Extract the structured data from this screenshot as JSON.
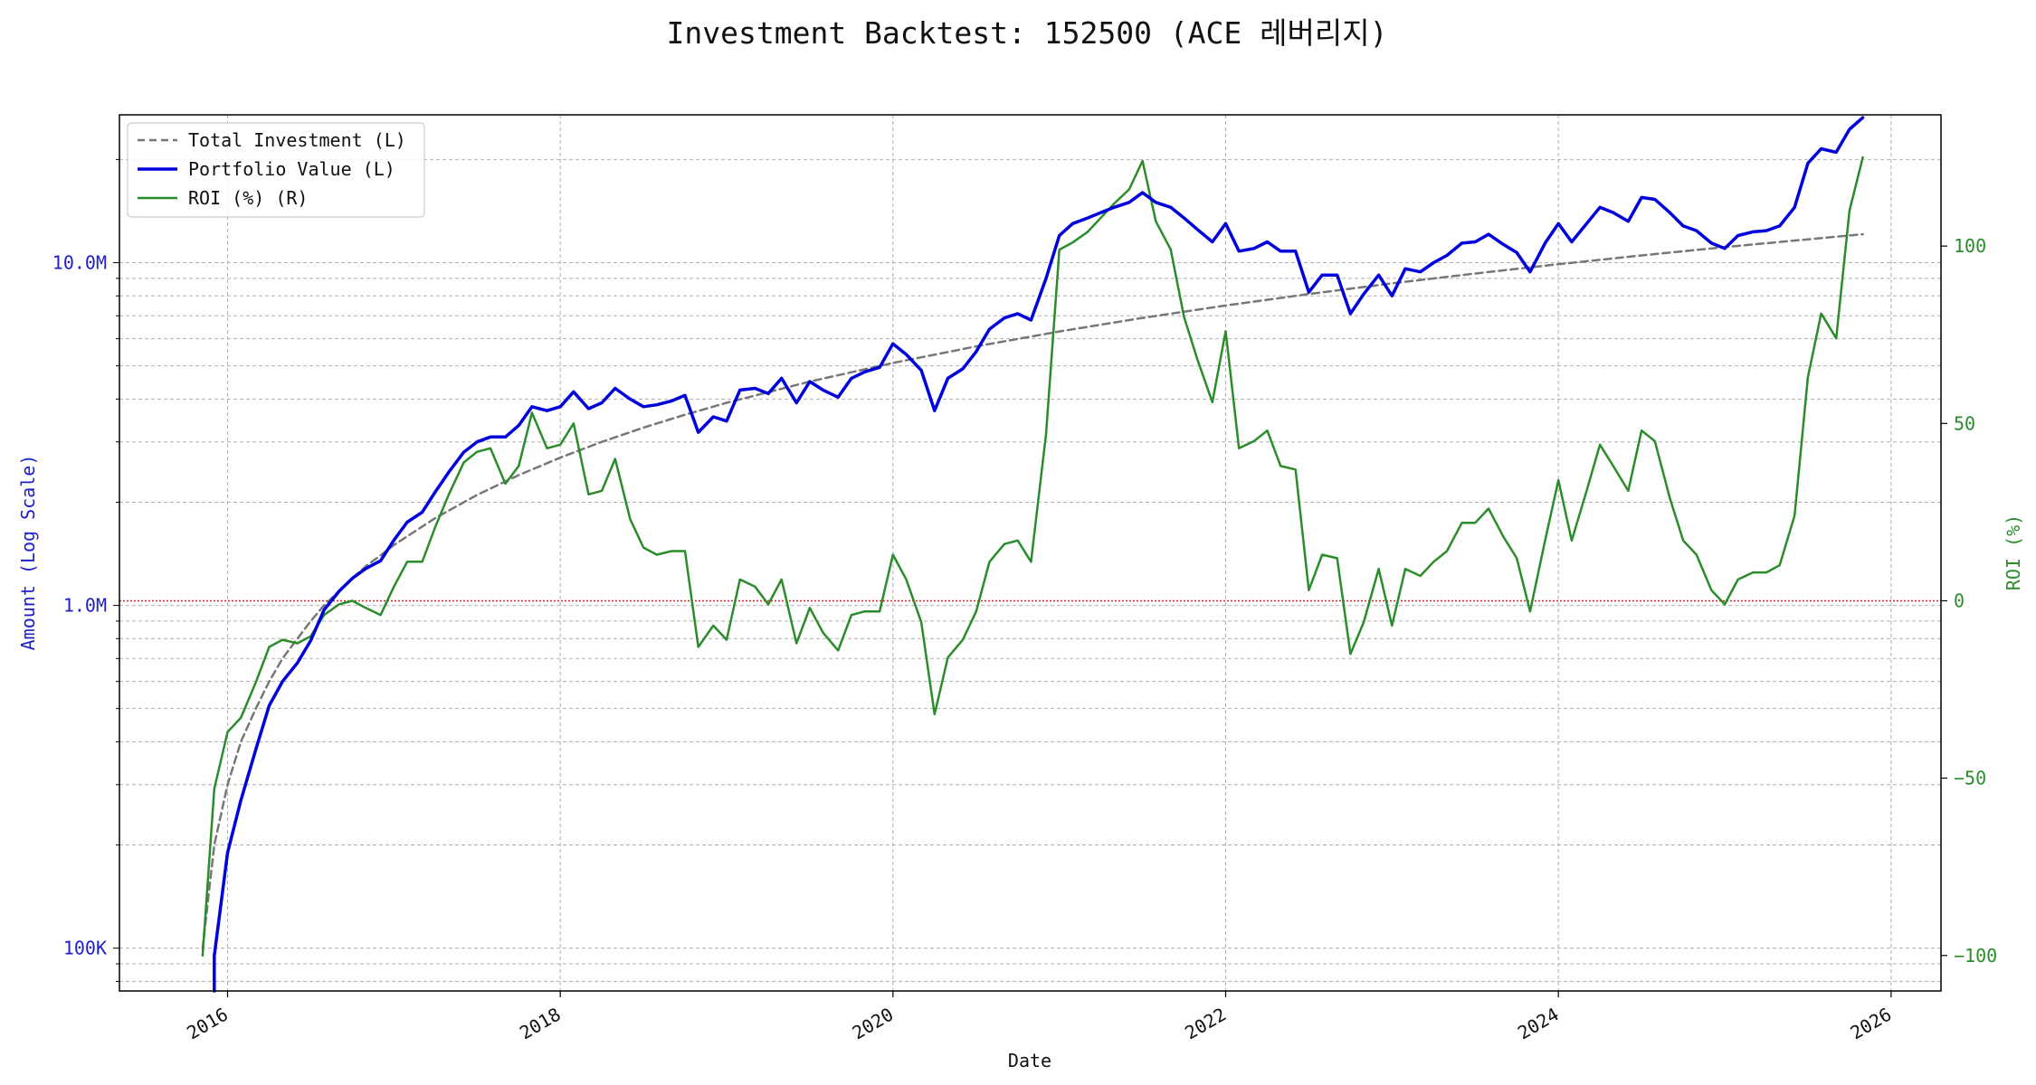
{
  "chart_data": {
    "type": "line",
    "title": "Investment Backtest: 152500 (ACE 레버리지)",
    "xlabel": "Date",
    "ylabel_left": "Amount (Log Scale)",
    "ylabel_right": "ROI (%)",
    "x_range": [
      2015.35,
      2026.3
    ],
    "y_left_scale": "log",
    "y_left_range": [
      75000,
      27000000
    ],
    "y_right_range": [
      -110,
      137
    ],
    "x_ticks": [
      {
        "value": 2016,
        "label": "2016"
      },
      {
        "value": 2018,
        "label": "2018"
      },
      {
        "value": 2020,
        "label": "2020"
      },
      {
        "value": 2022,
        "label": "2022"
      },
      {
        "value": 2024,
        "label": "2024"
      },
      {
        "value": 2026,
        "label": "2026"
      }
    ],
    "y_left_ticks": [
      {
        "value": 100000,
        "label": "100K"
      },
      {
        "value": 1000000,
        "label": "1.0M"
      },
      {
        "value": 10000000,
        "label": "10.0M"
      }
    ],
    "y_right_ticks": [
      {
        "value": -100,
        "label": "−100"
      },
      {
        "value": -50,
        "label": "−50"
      },
      {
        "value": 0,
        "label": "0"
      },
      {
        "value": 50,
        "label": "50"
      },
      {
        "value": 100,
        "label": "100"
      }
    ],
    "grid": true,
    "legend_position": "top-left",
    "colors": {
      "investment": "#777777",
      "portfolio": "#0000dd",
      "roi": "#2a8c2a",
      "zero_line": "#cc2222",
      "left_axis": "#2020c8",
      "right_axis": "#2a8c2a"
    },
    "legend": [
      {
        "key": "investment",
        "label": "Total Investment (L)"
      },
      {
        "key": "portfolio",
        "label": "Portfolio Value (L)"
      },
      {
        "key": "roi",
        "label": "ROI (%) (R)"
      }
    ],
    "reference_line": {
      "axis": "right",
      "value": 0
    },
    "series": {
      "investment": {
        "axis": "left",
        "x": [
          2015.85,
          2015.92,
          2016.0,
          2016.08,
          2016.17,
          2016.25,
          2016.33,
          2016.42,
          2016.5,
          2016.58,
          2016.67,
          2016.75,
          2016.83,
          2016.92,
          2017.0,
          2017.25,
          2017.5,
          2017.75,
          2018.0,
          2018.25,
          2018.5,
          2018.75,
          2019.0,
          2019.5,
          2020.0,
          2020.5,
          2021.0,
          2021.5,
          2022.0,
          2022.5,
          2023.0,
          2023.5,
          2024.0,
          2024.5,
          2025.0,
          2025.5,
          2025.83
        ],
        "y": [
          100000,
          200000,
          300000,
          400000,
          500000,
          600000,
          700000,
          800000,
          900000,
          1000000,
          1100000,
          1200000,
          1300000,
          1400000,
          1500000,
          1800000,
          2100000,
          2400000,
          2700000,
          3000000,
          3300000,
          3600000,
          3900000,
          4500000,
          5100000,
          5700000,
          6300000,
          6900000,
          7500000,
          8100000,
          8700000,
          9300000,
          9900000,
          10500000,
          11100000,
          11700000,
          12100000
        ]
      },
      "portfolio": {
        "axis": "left",
        "x": [
          2015.92,
          2015.92,
          2016.0,
          2016.08,
          2016.17,
          2016.25,
          2016.33,
          2016.42,
          2016.5,
          2016.58,
          2016.67,
          2016.75,
          2016.83,
          2016.92,
          2017.0,
          2017.08,
          2017.17,
          2017.25,
          2017.33,
          2017.42,
          2017.5,
          2017.58,
          2017.67,
          2017.75,
          2017.83,
          2017.92,
          2018.0,
          2018.08,
          2018.17,
          2018.25,
          2018.33,
          2018.42,
          2018.5,
          2018.58,
          2018.67,
          2018.75,
          2018.83,
          2018.92,
          2019.0,
          2019.08,
          2019.17,
          2019.25,
          2019.33,
          2019.42,
          2019.5,
          2019.58,
          2019.67,
          2019.75,
          2019.83,
          2019.92,
          2020.0,
          2020.08,
          2020.17,
          2020.25,
          2020.33,
          2020.42,
          2020.5,
          2020.58,
          2020.67,
          2020.75,
          2020.83,
          2020.92,
          2021.0,
          2021.08,
          2021.17,
          2021.25,
          2021.33,
          2021.42,
          2021.5,
          2021.58,
          2021.67,
          2021.75,
          2021.83,
          2021.92,
          2022.0,
          2022.08,
          2022.17,
          2022.25,
          2022.33,
          2022.42,
          2022.5,
          2022.58,
          2022.67,
          2022.75,
          2022.83,
          2022.92,
          2023.0,
          2023.08,
          2023.17,
          2023.25,
          2023.33,
          2023.42,
          2023.5,
          2023.58,
          2023.67,
          2023.75,
          2023.83,
          2023.92,
          2024.0,
          2024.08,
          2024.17,
          2024.25,
          2024.33,
          2024.42,
          2024.5,
          2024.58,
          2024.67,
          2024.75,
          2024.83,
          2024.92,
          2025.0,
          2025.08,
          2025.17,
          2025.25,
          2025.33,
          2025.42,
          2025.5,
          2025.58,
          2025.67,
          2025.75,
          2025.83
        ],
        "y": [
          75000,
          95000,
          190000,
          270000,
          380000,
          510000,
          600000,
          680000,
          790000,
          970000,
          1100000,
          1200000,
          1280000,
          1350000,
          1550000,
          1750000,
          1870000,
          2150000,
          2450000,
          2800000,
          3000000,
          3100000,
          3100000,
          3350000,
          3800000,
          3700000,
          3800000,
          4200000,
          3750000,
          3900000,
          4300000,
          4000000,
          3800000,
          3850000,
          3950000,
          4100000,
          3200000,
          3550000,
          3450000,
          4250000,
          4300000,
          4150000,
          4600000,
          3900000,
          4500000,
          4250000,
          4050000,
          4600000,
          4800000,
          4950000,
          5800000,
          5400000,
          4850000,
          3700000,
          4600000,
          4900000,
          5500000,
          6400000,
          6900000,
          7100000,
          6800000,
          9000000,
          12000000,
          13000000,
          13500000,
          14000000,
          14500000,
          15000000,
          16000000,
          15000000,
          14500000,
          13500000,
          12500000,
          11500000,
          13000000,
          10800000,
          11000000,
          11500000,
          10800000,
          10800000,
          8200000,
          9200000,
          9200000,
          7100000,
          8100000,
          9200000,
          8000000,
          9600000,
          9400000,
          10000000,
          10500000,
          11400000,
          11500000,
          12100000,
          11300000,
          10700000,
          9400000,
          11400000,
          13000000,
          11500000,
          13000000,
          14500000,
          14000000,
          13200000,
          15500000,
          15300000,
          14000000,
          12800000,
          12400000,
          11400000,
          11000000,
          12000000,
          12300000,
          12400000,
          12800000,
          14500000,
          19500000,
          21500000,
          21000000,
          24500000,
          26500000
        ]
      },
      "roi": {
        "axis": "right",
        "x": [
          2015.85,
          2015.92,
          2016.0,
          2016.08,
          2016.17,
          2016.25,
          2016.33,
          2016.42,
          2016.5,
          2016.58,
          2016.67,
          2016.75,
          2016.83,
          2016.92,
          2017.0,
          2017.08,
          2017.17,
          2017.25,
          2017.33,
          2017.42,
          2017.5,
          2017.58,
          2017.67,
          2017.75,
          2017.83,
          2017.92,
          2018.0,
          2018.08,
          2018.17,
          2018.25,
          2018.33,
          2018.42,
          2018.5,
          2018.58,
          2018.67,
          2018.75,
          2018.83,
          2018.92,
          2019.0,
          2019.08,
          2019.17,
          2019.25,
          2019.33,
          2019.42,
          2019.5,
          2019.58,
          2019.67,
          2019.75,
          2019.83,
          2019.92,
          2020.0,
          2020.08,
          2020.17,
          2020.25,
          2020.33,
          2020.42,
          2020.5,
          2020.58,
          2020.67,
          2020.75,
          2020.83,
          2020.92,
          2021.0,
          2021.08,
          2021.17,
          2021.25,
          2021.33,
          2021.42,
          2021.5,
          2021.58,
          2021.67,
          2021.75,
          2021.83,
          2021.92,
          2022.0,
          2022.08,
          2022.17,
          2022.25,
          2022.33,
          2022.42,
          2022.5,
          2022.58,
          2022.67,
          2022.75,
          2022.83,
          2022.92,
          2023.0,
          2023.08,
          2023.17,
          2023.25,
          2023.33,
          2023.42,
          2023.5,
          2023.58,
          2023.67,
          2023.75,
          2023.83,
          2023.92,
          2024.0,
          2024.08,
          2024.17,
          2024.25,
          2024.33,
          2024.42,
          2024.5,
          2024.58,
          2024.67,
          2024.75,
          2024.83,
          2024.92,
          2025.0,
          2025.08,
          2025.17,
          2025.25,
          2025.33,
          2025.42,
          2025.5,
          2025.58,
          2025.67,
          2025.75,
          2025.83
        ],
        "y": [
          -100,
          -53,
          -37,
          -33,
          -23,
          -13,
          -11,
          -12,
          -10,
          -4,
          -1,
          0,
          -2,
          -4,
          4,
          11,
          11,
          21,
          30,
          39,
          42,
          43,
          33,
          38,
          53,
          43,
          44,
          50,
          30,
          31,
          40,
          23,
          15,
          13,
          14,
          14,
          -13,
          -7,
          -11,
          6,
          4,
          -1,
          6,
          -12,
          -2,
          -9,
          -14,
          -4,
          -3,
          -3,
          13,
          6,
          -6,
          -32,
          -16,
          -11,
          -3,
          11,
          16,
          17,
          11,
          47,
          99,
          101,
          104,
          108,
          112,
          116,
          124,
          107,
          99,
          80,
          68,
          56,
          76,
          43,
          45,
          48,
          38,
          37,
          3,
          13,
          12,
          -15,
          -6,
          9,
          -7,
          9,
          7,
          11,
          14,
          22,
          22,
          26,
          18,
          12,
          -3,
          17,
          34,
          17,
          31,
          44,
          38,
          31,
          48,
          45,
          29,
          17,
          13,
          3,
          -1,
          6,
          8,
          8,
          10,
          24,
          63,
          81,
          74,
          110,
          125
        ]
      }
    }
  }
}
